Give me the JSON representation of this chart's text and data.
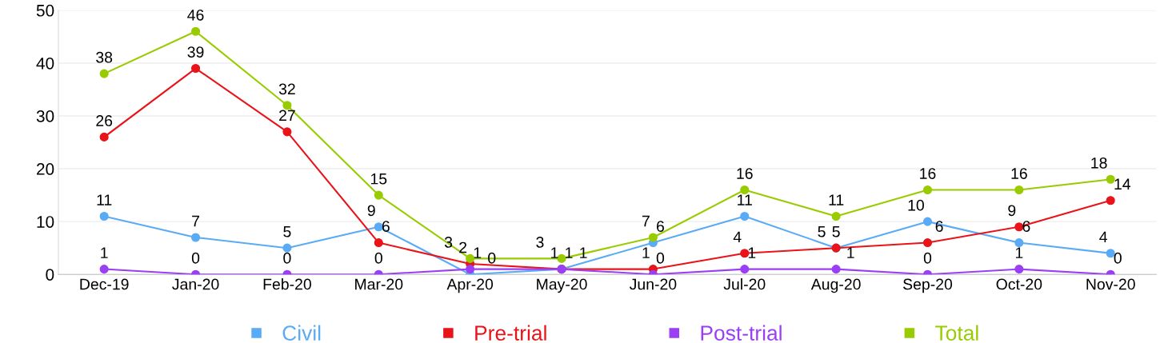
{
  "chart_data": {
    "type": "line",
    "categories": [
      "Dec-19",
      "Jan-20",
      "Feb-20",
      "Mar-20",
      "Apr-20",
      "May-20",
      "Jun-20",
      "Jul-20",
      "Aug-20",
      "Sep-20",
      "Oct-20",
      "Nov-20"
    ],
    "series": [
      {
        "name": "Civil",
        "color": "#5aabf5",
        "values": [
          11,
          7,
          5,
          9,
          0,
          1,
          6,
          11,
          5,
          10,
          6,
          4
        ]
      },
      {
        "name": "Pre-trial",
        "color": "#e8141a",
        "values": [
          26,
          39,
          27,
          6,
          2,
          1,
          1,
          4,
          5,
          6,
          9,
          14
        ]
      },
      {
        "name": "Post-trial",
        "color": "#9b3ff5",
        "values": [
          1,
          0,
          0,
          0,
          1,
          1,
          0,
          1,
          1,
          0,
          1,
          0
        ]
      },
      {
        "name": "Total",
        "color": "#99cc00",
        "values": [
          38,
          46,
          32,
          15,
          3,
          3,
          7,
          16,
          11,
          16,
          16,
          18
        ]
      }
    ],
    "ylim": [
      0,
      50
    ],
    "yticks": [
      0,
      10,
      20,
      30,
      40,
      50
    ],
    "grid": "y",
    "legend": "bottom",
    "marker": "circle",
    "line_style": "solid",
    "data_labels": true
  }
}
